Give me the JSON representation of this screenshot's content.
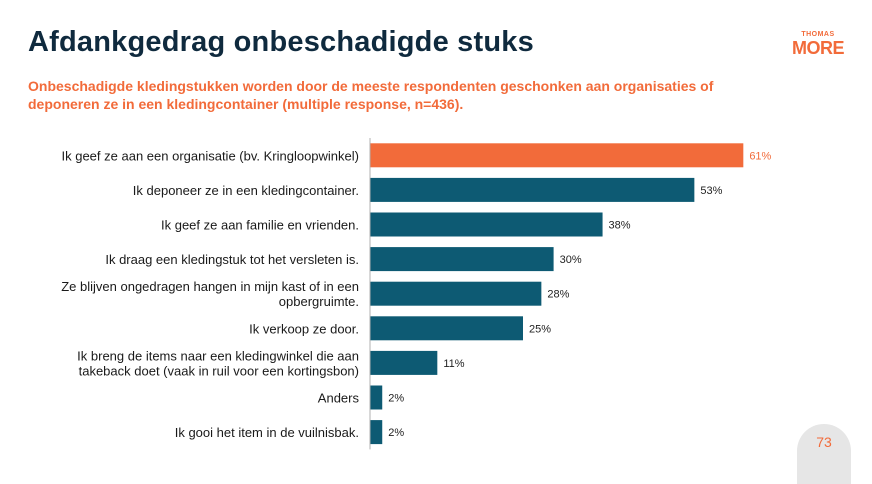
{
  "title": "Afdankgedrag onbeschadigde stuks",
  "subtitle": "Onbeschadigde kledingstukken worden door de meeste respondenten geschonken aan organisaties of deponeren ze in een kledingcontainer (multiple response, n=436).",
  "logo": {
    "top": "THOMAS",
    "bottom": "MORE"
  },
  "page_number": "73",
  "colors": {
    "highlight": "#f26b3a",
    "bar": "#0d5a73",
    "title": "#0f2a3e",
    "axis": "#b0b0b0"
  },
  "chart_data": {
    "type": "bar",
    "orientation": "horizontal",
    "categories": [
      [
        "Ik geef ze aan een organisatie (bv. Kringloopwinkel)"
      ],
      [
        "Ik deponeer ze in een kledingcontainer."
      ],
      [
        "Ik geef ze aan familie en vrienden."
      ],
      [
        "Ik draag een kledingstuk tot het versleten is."
      ],
      [
        "Ze blijven ongedragen hangen in mijn kast of in een",
        "opbergruimte."
      ],
      [
        "Ik verkoop ze door."
      ],
      [
        "Ik breng de items naar een kledingwinkel die aan",
        "takeback doet (vaak in ruil voor een kortingsbon)"
      ],
      [
        "Anders"
      ],
      [
        "Ik gooi het item in de vuilnisbak."
      ]
    ],
    "values": [
      61,
      53,
      38,
      30,
      28,
      25,
      11,
      2,
      2
    ],
    "value_labels": [
      "61%",
      "53%",
      "38%",
      "30%",
      "28%",
      "25%",
      "11%",
      "2%",
      "2%"
    ],
    "highlight_index": 0,
    "xlim": [
      0,
      100
    ]
  }
}
